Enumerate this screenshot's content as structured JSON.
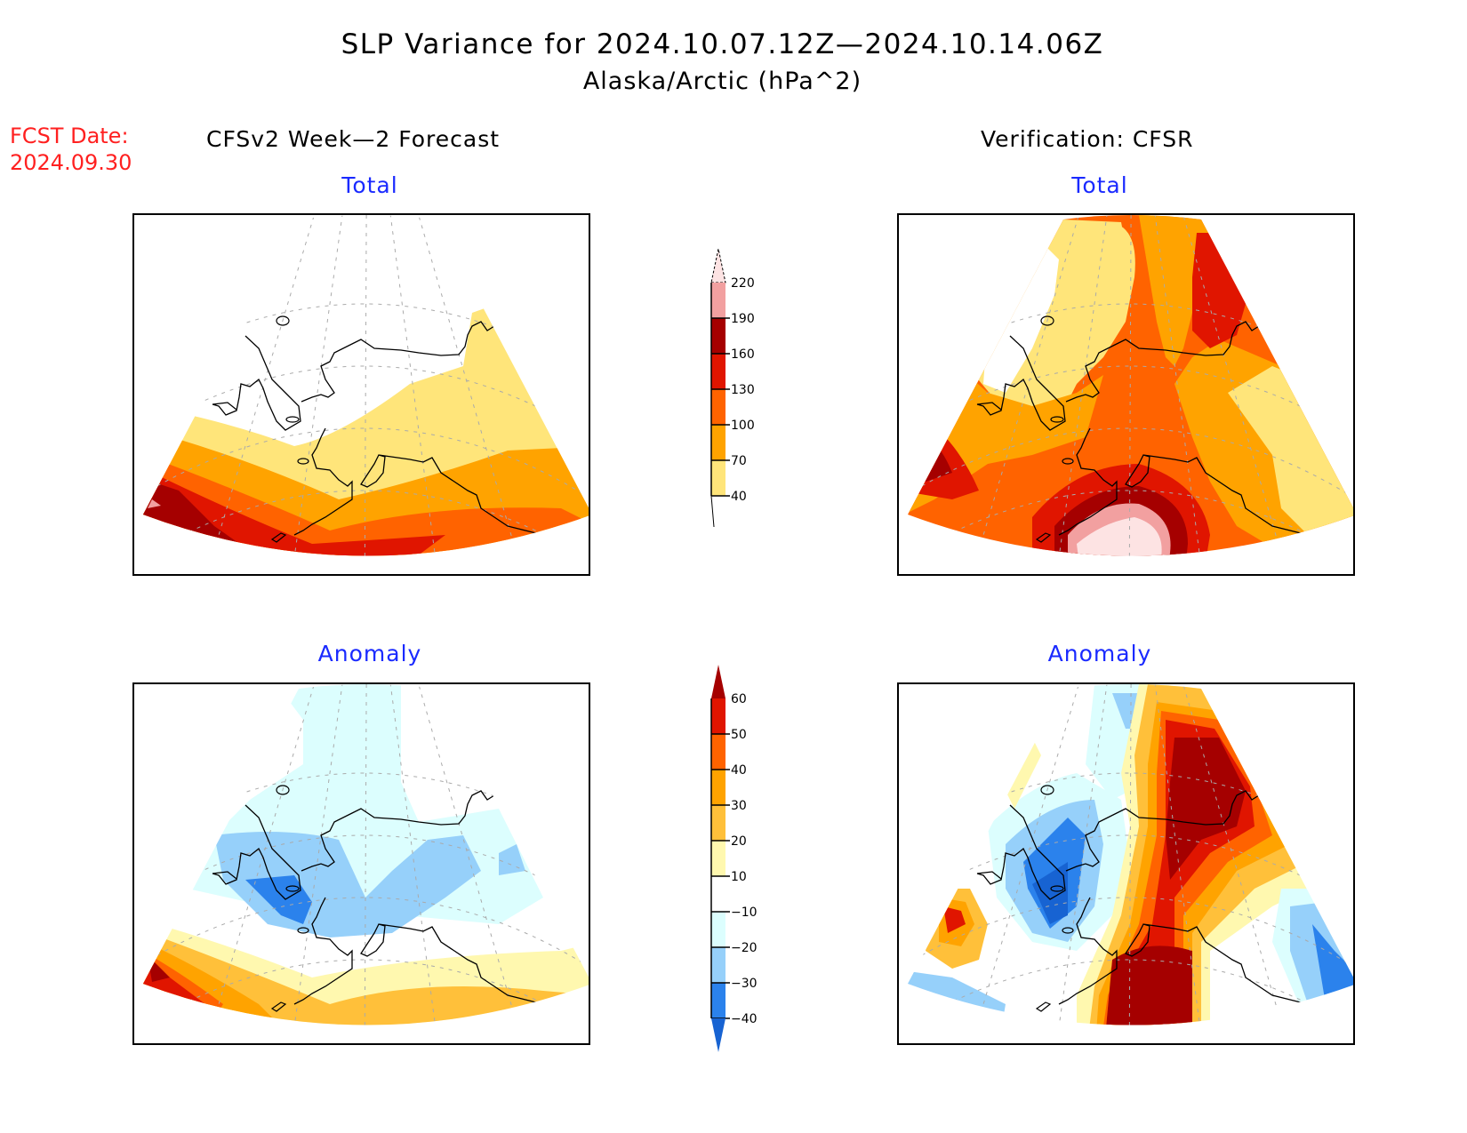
{
  "header": {
    "title": "SLP Variance for 2024.10.07.12Z—2024.10.14.06Z",
    "subtitle": "Alaska/Arctic (hPa^2)",
    "fcst_label": "FCST Date:",
    "fcst_date": "2024.09.30",
    "left_column": "CFSv2 Week—2 Forecast",
    "right_column": "Verification: CFSR"
  },
  "chart_data": [
    {
      "type": "heatmap",
      "id": "forecast-total",
      "title": "Total",
      "column": "CFSv2 Week-2 Forecast",
      "projection": "polar-stereographic sector (Alaska/Arctic)",
      "colorbar": "total",
      "pattern": "Values < 40 over Arctic Ocean and northern/western Alaska; 40-70 band across central Alaska; increasing southward to 160-190 over the western Aleutians / Bering Sea; 130-160 across North Pacific south of Aleutians; small area 190-220 at far southwest edge.",
      "max_class": "190-220",
      "min_class": "<40"
    },
    {
      "type": "heatmap",
      "id": "verification-total",
      "title": "Total",
      "column": "Verification: CFSR",
      "colorbar": "total",
      "pattern": "Maximum >220 centered over the Gulf of Alaska / south of Alaska Peninsula, surrounded by 190-220 and 160-190 rings; 160-190 core over western Bering Sea; 130-160 over the Beaufort/Yukon region in the northeast; 100-130 across much of Alaska; <40 area over Chukchi Sea; 40-70 in northwest and east.",
      "max_class": ">220",
      "min_class": "<40"
    },
    {
      "type": "heatmap",
      "id": "forecast-anomaly",
      "title": "Anomaly",
      "column": "CFSv2 Week-2 Forecast",
      "colorbar": "anomaly",
      "pattern": "Weak negative anomalies (-10 to -20) over Alaska and Arctic; -20 to -30 core over western Alaska/Bering Strait; positive anomalies (30-60) over western Bering Sea / Aleutians; 10-30 over North Pacific.",
      "max_class": "50-60",
      "min_class": "-30 to -40"
    },
    {
      "type": "heatmap",
      "id": "verification-anomaly",
      "title": "Anomaly",
      "column": "Verification: CFSR",
      "colorbar": "anomaly",
      "pattern": "Strong positive anomaly (>60) over Gulf of Alaska and over Yukon/Beaufort region, connected by a 30-60 band across eastern Alaska; negative anomalies (-30 to -40) over western Alaska / Bering Strait and far southeast and southwest; positive 40-60 pocket over western Bering Sea.",
      "max_class": ">60",
      "min_class": "<-40"
    }
  ],
  "colorbars": {
    "total": {
      "ticks": [
        "40",
        "70",
        "100",
        "130",
        "160",
        "190",
        "220"
      ],
      "colors": [
        "#ffe57a",
        "#ffa300",
        "#ff6300",
        "#e01500",
        "#a50000",
        "#f2a0a0",
        "#fde3e3"
      ],
      "extend": "both"
    },
    "anomaly": {
      "ticks": [
        "−40",
        "−30",
        "−20",
        "−10",
        "10",
        "20",
        "30",
        "40",
        "50",
        "60"
      ],
      "colors": [
        "#1763d2",
        "#2b82ec",
        "#96d0fa",
        "#dcfefe",
        "#ffffff",
        "#fff8af",
        "#ffc03a",
        "#ffa300",
        "#ff6300",
        "#e01500",
        "#a50000"
      ],
      "extend": "both"
    }
  }
}
